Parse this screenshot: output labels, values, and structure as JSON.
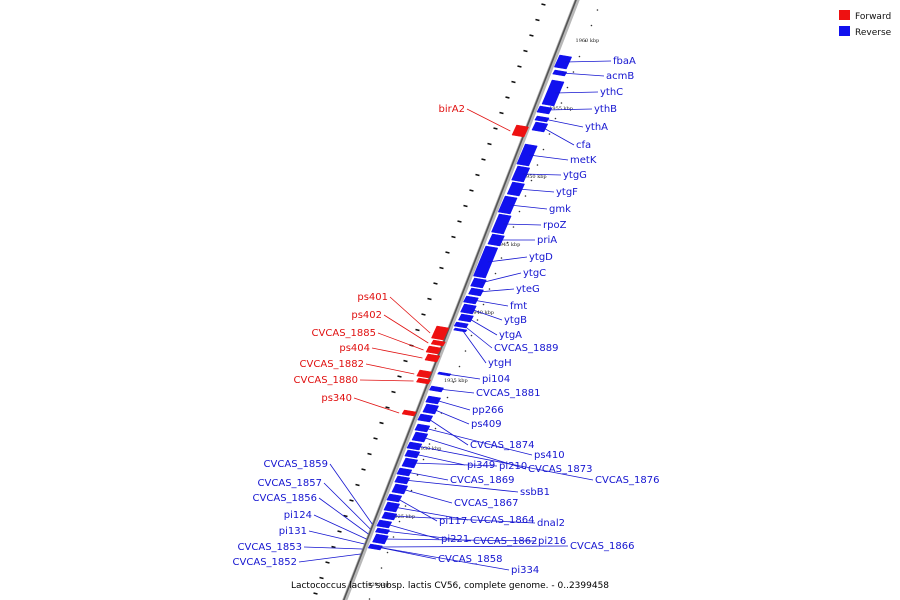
{
  "legend": [
    {
      "label": "Forward",
      "color": "#ee1111"
    },
    {
      "label": "Reverse",
      "color": "#1111ee"
    }
  ],
  "caption": "Lactococcus lactis subsp. lactis CV56, complete genome. - 0..2399458",
  "axis": {
    "unit": "kbp",
    "visible_range_kbp": [
      1920,
      1960
    ]
  },
  "ticks": [
    {
      "kbp": 1960,
      "label": "1960 kbp"
    },
    {
      "kbp": 1955,
      "label": "1955 kbp"
    },
    {
      "kbp": 1950,
      "label": "1950 kbp"
    },
    {
      "kbp": 1945,
      "label": "1945 kbp"
    },
    {
      "kbp": 1940,
      "label": "1940 kbp"
    },
    {
      "kbp": 1935,
      "label": "1935 kbp"
    },
    {
      "kbp": 1930,
      "label": "1930 kbp"
    },
    {
      "kbp": 1925,
      "label": "1925 kbp"
    },
    {
      "kbp": 1920,
      "label": "1920 kbp"
    }
  ],
  "features": {
    "forward": [
      {
        "label": "birA2"
      },
      {
        "label": "ps401"
      },
      {
        "label": "ps402"
      },
      {
        "label": "CVCAS_1885"
      },
      {
        "label": "ps404"
      },
      {
        "label": "CVCAS_1882"
      },
      {
        "label": "CVCAS_1880"
      },
      {
        "label": "ps340"
      }
    ],
    "reverse": [
      {
        "label": "fbaA"
      },
      {
        "label": "acmB"
      },
      {
        "label": "ythC"
      },
      {
        "label": "ythB"
      },
      {
        "label": "ythA"
      },
      {
        "label": "cfa"
      },
      {
        "label": "metK"
      },
      {
        "label": "ytgG"
      },
      {
        "label": "ytgF"
      },
      {
        "label": "gmk"
      },
      {
        "label": "rpoZ"
      },
      {
        "label": "priA"
      },
      {
        "label": "ytgD"
      },
      {
        "label": "ytgC"
      },
      {
        "label": "yteG"
      },
      {
        "label": "fmt"
      },
      {
        "label": "ytgB"
      },
      {
        "label": "ytgA"
      },
      {
        "label": "CVCAS_1889"
      },
      {
        "label": "ytgH"
      },
      {
        "label": "pi104"
      },
      {
        "label": "CVCAS_1881"
      },
      {
        "label": "pp266"
      },
      {
        "label": "ps409"
      },
      {
        "label": "CVCAS_1874"
      },
      {
        "label": "ps410"
      },
      {
        "label": "CVCAS_1873"
      },
      {
        "label": "CVCAS_1876"
      },
      {
        "label": "pi349"
      },
      {
        "label": "pi210"
      },
      {
        "label": "CVCAS_1869"
      },
      {
        "label": "ssbB1"
      },
      {
        "label": "CVCAS_1867"
      },
      {
        "label": "pi117"
      },
      {
        "label": "CVCAS_1864"
      },
      {
        "label": "dnal2"
      },
      {
        "label": "pi221"
      },
      {
        "label": "CVCAS_1862"
      },
      {
        "label": "pi216"
      },
      {
        "label": "CVCAS_1866"
      },
      {
        "label": "CVCAS_1858"
      },
      {
        "label": "pi334"
      },
      {
        "label": "CVCAS_1859"
      },
      {
        "label": "CVCAS_1857"
      },
      {
        "label": "CVCAS_1856"
      },
      {
        "label": "pi124"
      },
      {
        "label": "pi131"
      },
      {
        "label": "CVCAS_1853"
      },
      {
        "label": "CVCAS_1852"
      }
    ]
  }
}
